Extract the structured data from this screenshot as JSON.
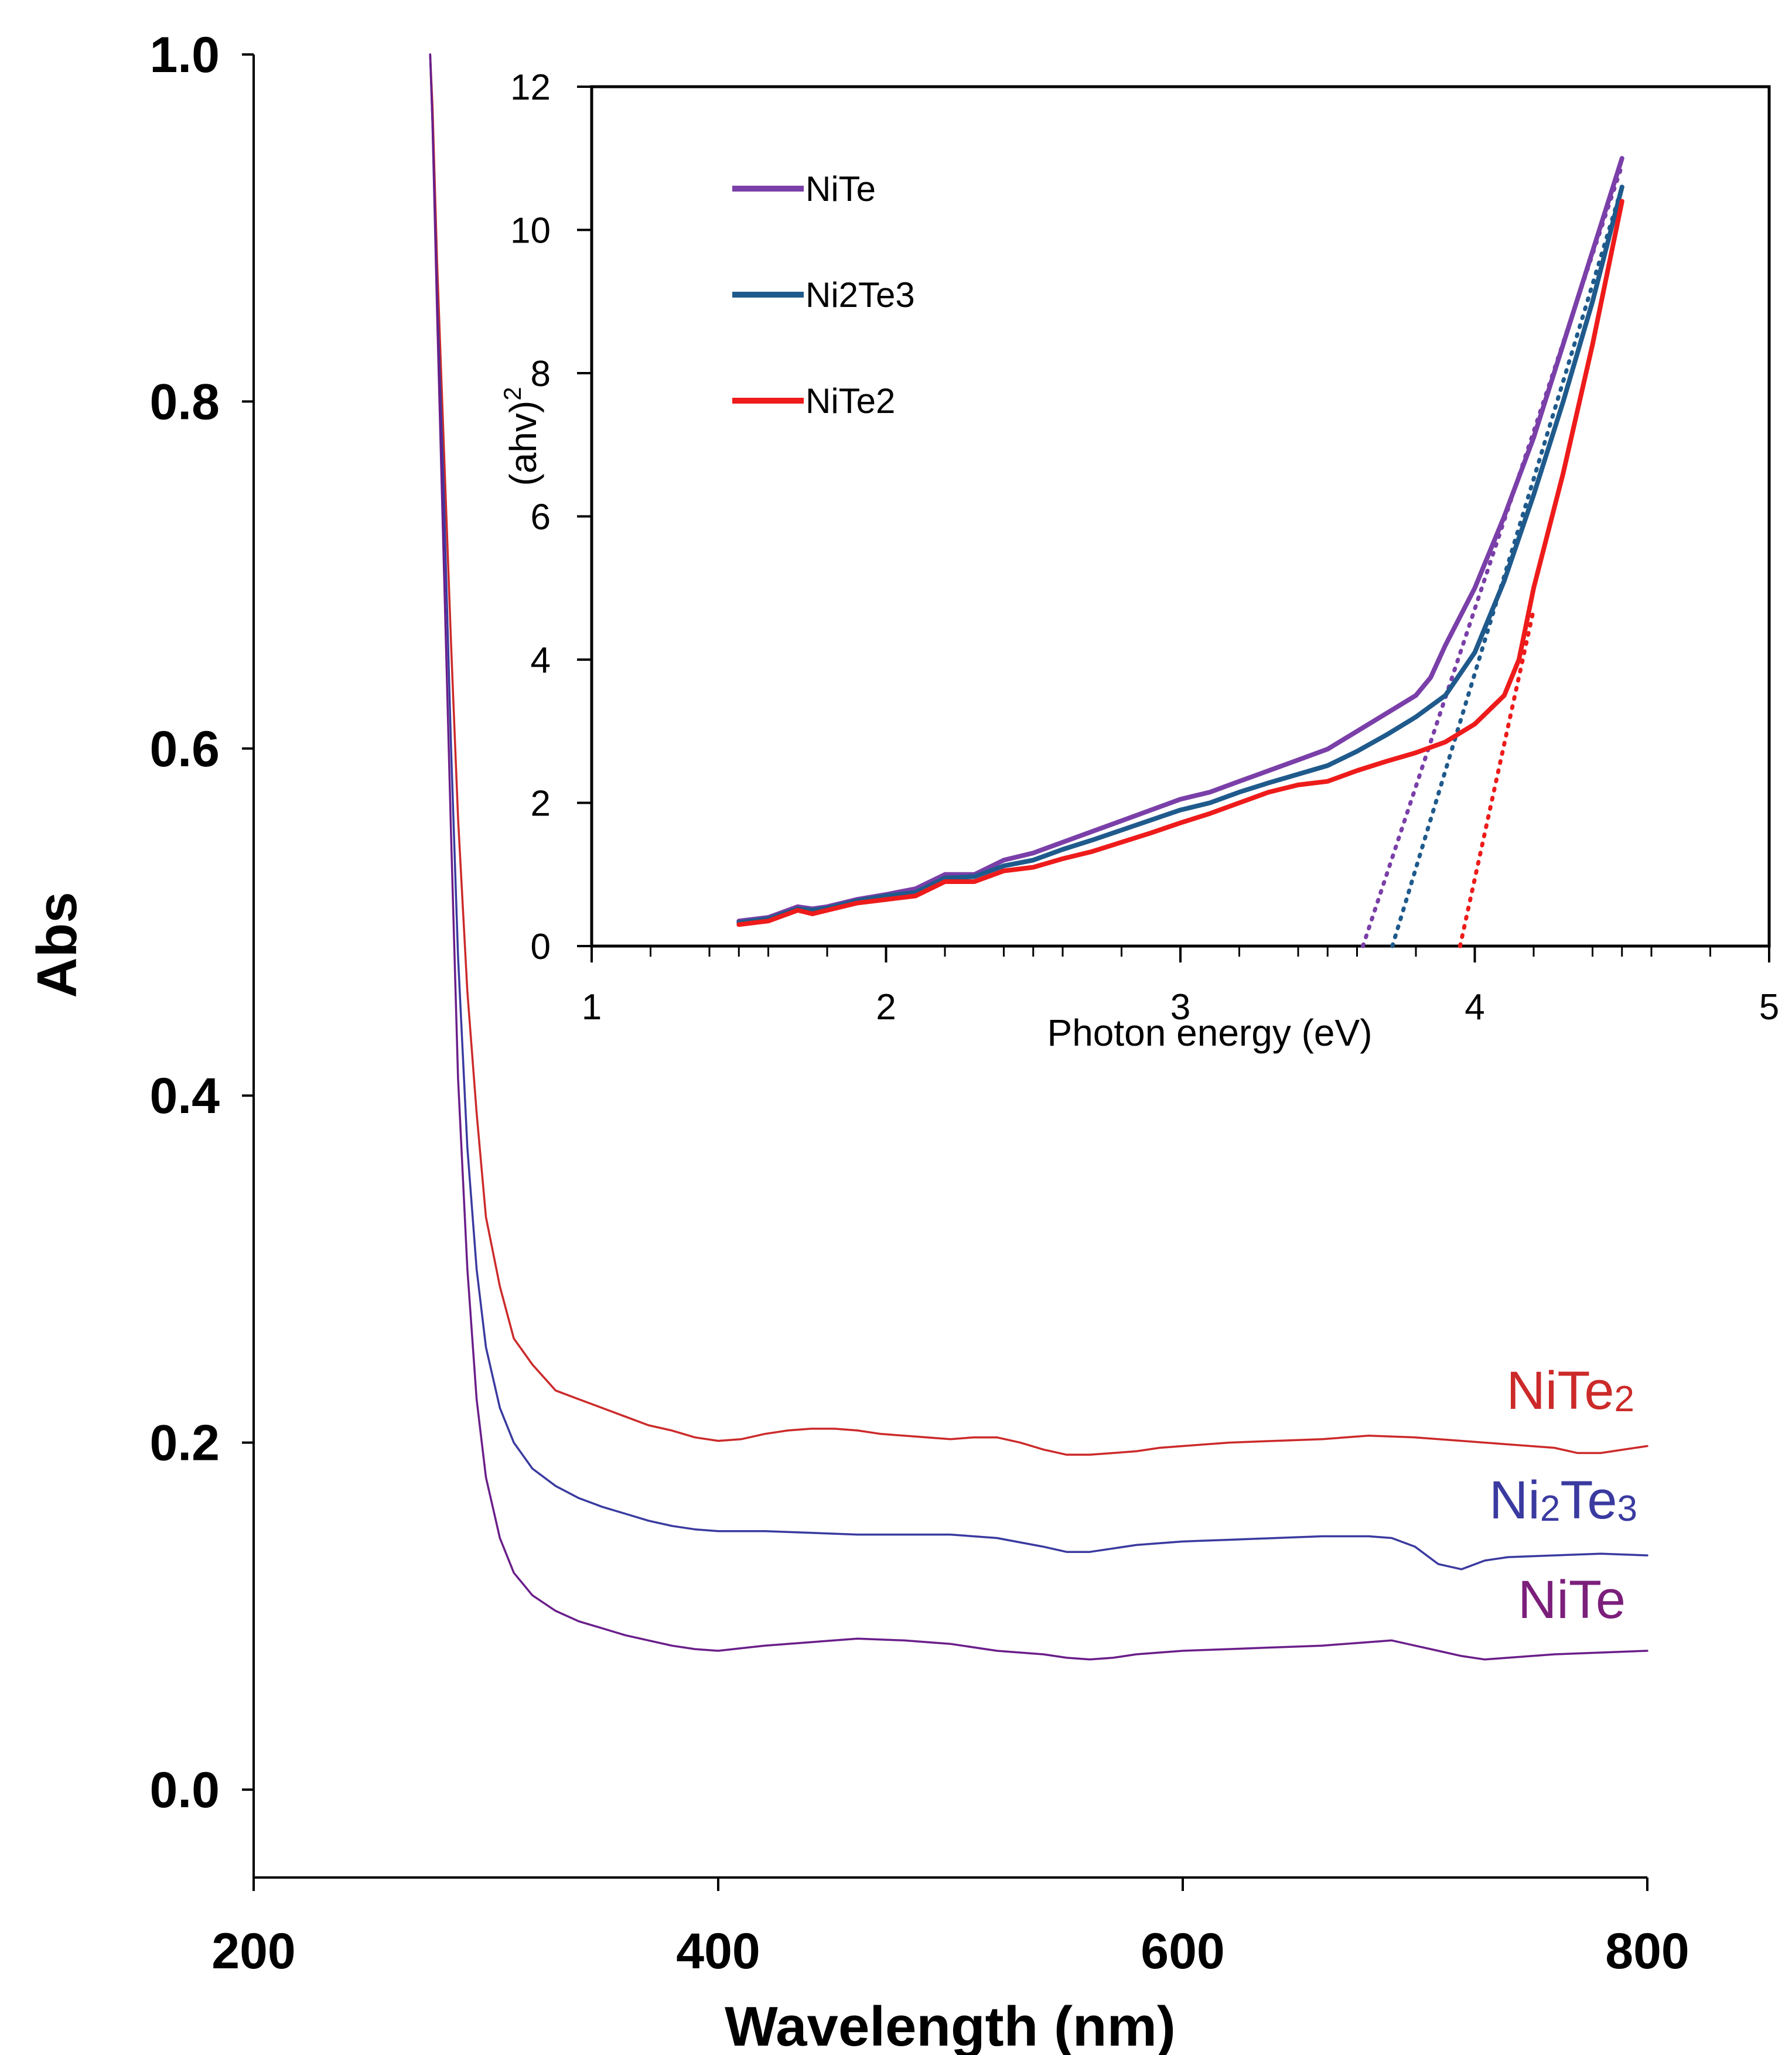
{
  "chart_data": [
    {
      "type": "line",
      "title": "",
      "xlabel": "Wavelength (nm)",
      "ylabel": "Abs",
      "xlim": [
        200,
        800
      ],
      "ylim": [
        -0.05,
        1.0
      ],
      "xticks": [
        "200",
        "400",
        "600",
        "800"
      ],
      "yticks": [
        "0.0",
        "0.2",
        "0.4",
        "0.6",
        "0.8",
        "1.0"
      ],
      "series": [
        {
          "name": "NiTe2",
          "label_main": "NiTe",
          "label_sub": "2",
          "color": "#cc2a2a",
          "x": [
            276,
            277,
            279,
            282,
            285,
            288,
            292,
            296,
            300,
            306,
            312,
            320,
            330,
            340,
            350,
            360,
            370,
            380,
            390,
            400,
            410,
            420,
            430,
            440,
            450,
            460,
            470,
            480,
            490,
            500,
            510,
            520,
            530,
            540,
            550,
            560,
            570,
            580,
            590,
            600,
            620,
            640,
            660,
            680,
            700,
            720,
            740,
            760,
            770,
            780,
            790,
            800
          ],
          "y": [
            1.0,
            0.97,
            0.88,
            0.77,
            0.66,
            0.56,
            0.46,
            0.39,
            0.33,
            0.29,
            0.26,
            0.245,
            0.23,
            0.225,
            0.22,
            0.215,
            0.21,
            0.207,
            0.203,
            0.201,
            0.202,
            0.205,
            0.207,
            0.208,
            0.208,
            0.207,
            0.205,
            0.204,
            0.203,
            0.202,
            0.203,
            0.203,
            0.2,
            0.196,
            0.193,
            0.193,
            0.194,
            0.195,
            0.197,
            0.198,
            0.2,
            0.201,
            0.202,
            0.204,
            0.203,
            0.201,
            0.199,
            0.197,
            0.194,
            0.194,
            0.196,
            0.198
          ]
        },
        {
          "name": "Ni2Te3",
          "label_pre": "Ni",
          "label_sub1": "2",
          "label_mid": "Te",
          "label_sub2": "3",
          "color": "#3a3aa0",
          "x": [
            276,
            277,
            279,
            282,
            285,
            288,
            292,
            296,
            300,
            306,
            312,
            320,
            330,
            340,
            350,
            360,
            370,
            380,
            390,
            400,
            420,
            440,
            460,
            480,
            500,
            520,
            540,
            550,
            560,
            570,
            580,
            600,
            620,
            640,
            660,
            680,
            690,
            700,
            710,
            720,
            730,
            740,
            760,
            780,
            800
          ],
          "y": [
            1.0,
            0.96,
            0.86,
            0.74,
            0.6,
            0.48,
            0.37,
            0.3,
            0.255,
            0.22,
            0.2,
            0.185,
            0.175,
            0.168,
            0.163,
            0.159,
            0.155,
            0.152,
            0.15,
            0.149,
            0.149,
            0.148,
            0.147,
            0.147,
            0.147,
            0.145,
            0.14,
            0.137,
            0.137,
            0.139,
            0.141,
            0.143,
            0.144,
            0.145,
            0.146,
            0.146,
            0.145,
            0.14,
            0.13,
            0.127,
            0.132,
            0.134,
            0.135,
            0.136,
            0.135
          ]
        },
        {
          "name": "NiTe",
          "label": "NiTe",
          "color": "#6a1e8a",
          "x": [
            276,
            277,
            279,
            282,
            285,
            288,
            292,
            296,
            300,
            306,
            312,
            320,
            330,
            340,
            350,
            360,
            370,
            380,
            390,
            400,
            420,
            440,
            460,
            480,
            500,
            520,
            540,
            550,
            560,
            570,
            580,
            600,
            620,
            640,
            660,
            680,
            690,
            700,
            710,
            720,
            730,
            740,
            760,
            780,
            800
          ],
          "y": [
            1.0,
            0.96,
            0.85,
            0.7,
            0.55,
            0.41,
            0.3,
            0.225,
            0.18,
            0.145,
            0.125,
            0.112,
            0.103,
            0.097,
            0.093,
            0.089,
            0.086,
            0.083,
            0.081,
            0.08,
            0.083,
            0.085,
            0.087,
            0.086,
            0.084,
            0.08,
            0.078,
            0.076,
            0.075,
            0.076,
            0.078,
            0.08,
            0.081,
            0.082,
            0.083,
            0.085,
            0.086,
            0.083,
            0.08,
            0.077,
            0.075,
            0.076,
            0.078,
            0.079,
            0.08
          ]
        }
      ]
    },
    {
      "type": "line",
      "title": "",
      "xlabel": "Photon energy (eV)",
      "ylabel_main": "(ahv)",
      "ylabel_sup": "2",
      "xlim": [
        1,
        5
      ],
      "ylim": [
        0,
        12
      ],
      "xticks": [
        "1",
        "2",
        "3",
        "4",
        "5"
      ],
      "yticks": [
        "0",
        "2",
        "4",
        "6",
        "8",
        "10",
        "12"
      ],
      "legend_position": "top-left",
      "series": [
        {
          "name": "NiTe",
          "color": "#7a3fa8",
          "x": [
            1.5,
            1.6,
            1.7,
            1.75,
            1.8,
            1.9,
            2.0,
            2.1,
            2.2,
            2.3,
            2.4,
            2.5,
            2.6,
            2.7,
            2.8,
            2.9,
            3.0,
            3.1,
            3.2,
            3.3,
            3.4,
            3.5,
            3.6,
            3.7,
            3.8,
            3.85,
            3.9,
            4.0,
            4.1,
            4.2,
            4.3,
            4.4,
            4.5
          ],
          "y": [
            0.35,
            0.4,
            0.55,
            0.52,
            0.55,
            0.65,
            0.72,
            0.8,
            1.0,
            1.0,
            1.2,
            1.3,
            1.45,
            1.6,
            1.75,
            1.9,
            2.05,
            2.15,
            2.3,
            2.45,
            2.6,
            2.75,
            3.0,
            3.25,
            3.5,
            3.75,
            4.2,
            5.0,
            6.0,
            7.1,
            8.4,
            9.7,
            11.0
          ],
          "extrapolation": {
            "x": [
              3.62,
              4.5
            ],
            "y": [
              0,
              10.9
            ]
          }
        },
        {
          "name": "Ni2Te3",
          "color": "#1f5a8c",
          "x": [
            1.5,
            1.6,
            1.7,
            1.75,
            1.8,
            1.9,
            2.0,
            2.1,
            2.2,
            2.3,
            2.4,
            2.5,
            2.6,
            2.7,
            2.8,
            2.9,
            3.0,
            3.1,
            3.2,
            3.3,
            3.4,
            3.5,
            3.6,
            3.7,
            3.8,
            3.9,
            4.0,
            4.1,
            4.2,
            4.3,
            4.4,
            4.5
          ],
          "y": [
            0.33,
            0.38,
            0.52,
            0.5,
            0.53,
            0.63,
            0.7,
            0.75,
            0.95,
            0.97,
            1.12,
            1.2,
            1.35,
            1.48,
            1.62,
            1.76,
            1.9,
            2.0,
            2.15,
            2.28,
            2.4,
            2.52,
            2.72,
            2.95,
            3.2,
            3.5,
            4.1,
            5.1,
            6.3,
            7.6,
            9.0,
            10.6
          ],
          "extrapolation": {
            "x": [
              3.72,
              4.5
            ],
            "y": [
              0,
              10.6
            ]
          }
        },
        {
          "name": "NiTe2",
          "color": "#ee1b1b",
          "x": [
            1.5,
            1.6,
            1.7,
            1.75,
            1.8,
            1.9,
            2.0,
            2.1,
            2.2,
            2.3,
            2.4,
            2.5,
            2.6,
            2.7,
            2.8,
            2.9,
            3.0,
            3.1,
            3.2,
            3.3,
            3.4,
            3.5,
            3.6,
            3.7,
            3.8,
            3.9,
            4.0,
            4.1,
            4.15,
            4.2,
            4.3,
            4.4,
            4.5
          ],
          "y": [
            0.3,
            0.35,
            0.5,
            0.45,
            0.5,
            0.6,
            0.65,
            0.7,
            0.9,
            0.9,
            1.05,
            1.1,
            1.22,
            1.32,
            1.45,
            1.58,
            1.72,
            1.85,
            2.0,
            2.15,
            2.25,
            2.3,
            2.45,
            2.58,
            2.7,
            2.85,
            3.1,
            3.5,
            4.0,
            5.0,
            6.6,
            8.4,
            10.4
          ],
          "extrapolation": {
            "x": [
              3.95,
              4.2
            ],
            "y": [
              0,
              4.7
            ]
          }
        }
      ]
    }
  ]
}
